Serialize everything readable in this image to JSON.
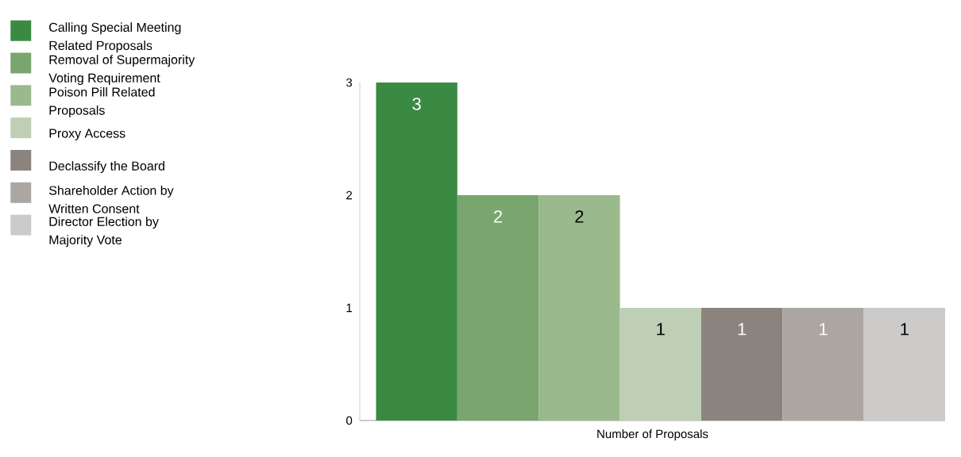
{
  "chart_data": {
    "type": "bar",
    "xlabel": "Number of Proposals",
    "categories": [
      null
    ],
    "series": [
      {
        "name": "Calling Special Meeting Related Proposals",
        "color": "#3b8a43",
        "values": [
          3
        ]
      },
      {
        "name": "Removal of Supermajority Voting Requirement",
        "color": "#78a66e",
        "values": [
          2
        ]
      },
      {
        "name": "Poison Pill Related Proposals",
        "color": "#9ab98c",
        "values": [
          2
        ]
      },
      {
        "name": "Proxy Access",
        "color": "#bfcfb5",
        "values": [
          1
        ]
      },
      {
        "name": "Declassify the Board",
        "color": "#8b837d",
        "values": [
          1
        ]
      },
      {
        "name": "Shareholder Action by Written Consent",
        "color": "#aca6a2",
        "values": [
          1
        ]
      },
      {
        "name": "Director Election by Majority Vote",
        "color": "#cccbca",
        "values": [
          1
        ]
      }
    ],
    "ylim": [
      0,
      3
    ],
    "yticks": [
      0,
      1,
      2,
      3
    ],
    "data_labels": true,
    "legend": "left",
    "grid": false
  }
}
